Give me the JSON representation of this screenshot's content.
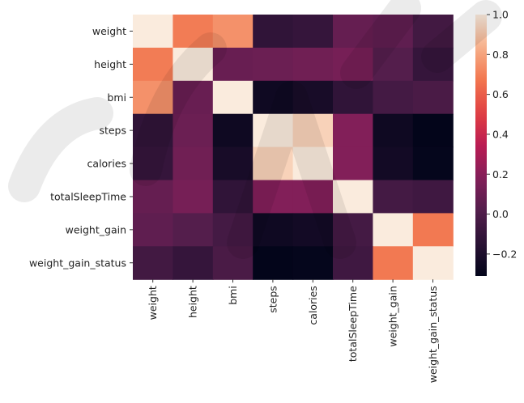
{
  "chart_data": {
    "type": "heatmap",
    "title": "",
    "xlabel": "",
    "ylabel": "",
    "labels": [
      "weight",
      "height",
      "bmi",
      "steps",
      "calories",
      "totalSleepTime",
      "weight_gain",
      "weight_gain_status"
    ],
    "matrix": [
      [
        1.0,
        0.69,
        0.75,
        -0.12,
        -0.1,
        0.08,
        0.06,
        -0.05
      ],
      [
        0.69,
        1.0,
        0.09,
        0.1,
        0.12,
        0.14,
        0.02,
        -0.1
      ],
      [
        0.75,
        0.09,
        1.0,
        -0.26,
        -0.22,
        -0.12,
        -0.04,
        -0.02
      ],
      [
        -0.12,
        0.1,
        -0.26,
        1.0,
        0.93,
        0.18,
        -0.26,
        -0.31
      ],
      [
        -0.1,
        0.12,
        -0.22,
        0.93,
        1.0,
        0.18,
        -0.24,
        -0.3
      ],
      [
        0.08,
        0.14,
        -0.12,
        0.18,
        0.18,
        1.0,
        -0.04,
        -0.06
      ],
      [
        0.06,
        0.02,
        -0.04,
        -0.26,
        -0.24,
        -0.04,
        1.0,
        0.68
      ],
      [
        -0.05,
        -0.1,
        -0.02,
        -0.31,
        -0.3,
        -0.06,
        0.68,
        1.0
      ]
    ],
    "colorbar": {
      "min": -0.31,
      "max": 1.0,
      "ticks": [
        1.0,
        0.8,
        0.6,
        0.4,
        0.2,
        0.0,
        -0.2
      ],
      "tick_labels": [
        "1.0",
        "0.8",
        "0.6",
        "0.4",
        "0.2",
        "0.0",
        "−0.2"
      ],
      "colormap": "rocket"
    }
  }
}
